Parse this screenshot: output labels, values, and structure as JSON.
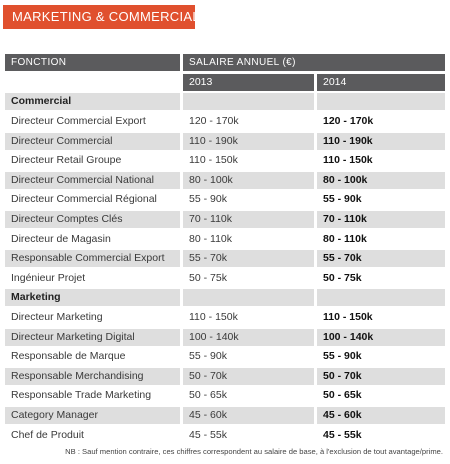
{
  "banner": {
    "title": "MARKETING & COMMERCIAL"
  },
  "header": {
    "fonction": "FONCTION",
    "salaire": "SALAIRE ANNUEL (€)",
    "year1": "2013",
    "year2": "2014"
  },
  "sections": [
    {
      "title": "Commercial",
      "rows": [
        {
          "fonction": "Directeur Commercial Export",
          "y2013": "120 - 170k",
          "y2014": "120 - 170k"
        },
        {
          "fonction": "Directeur Commercial",
          "y2013": "110 - 190k",
          "y2014": "110 - 190k"
        },
        {
          "fonction": "Directeur Retail Groupe",
          "y2013": "110 - 150k",
          "y2014": "110 - 150k"
        },
        {
          "fonction": "Directeur Commercial National",
          "y2013": "80 - 100k",
          "y2014": "80 - 100k"
        },
        {
          "fonction": "Directeur Commercial Régional",
          "y2013": "55 - 90k",
          "y2014": "55 - 90k"
        },
        {
          "fonction": "Directeur Comptes Clés",
          "y2013": "70 - 110k",
          "y2014": "70 - 110k"
        },
        {
          "fonction": "Directeur de Magasin",
          "y2013": "80 - 110k",
          "y2014": "80 - 110k"
        },
        {
          "fonction": "Responsable Commercial Export",
          "y2013": "55 - 70k",
          "y2014": "55 - 70k"
        },
        {
          "fonction": "Ingénieur Projet",
          "y2013": "50 - 75k",
          "y2014": "50 - 75k"
        }
      ]
    },
    {
      "title": "Marketing",
      "rows": [
        {
          "fonction": "Directeur Marketing",
          "y2013": "110 - 150k",
          "y2014": "110 - 150k"
        },
        {
          "fonction": "Directeur Marketing Digital",
          "y2013": "100 - 140k",
          "y2014": "100 - 140k"
        },
        {
          "fonction": "Responsable de Marque",
          "y2013": "55 - 90k",
          "y2014": "55 - 90k"
        },
        {
          "fonction": "Responsable Merchandising",
          "y2013": "50 - 70k",
          "y2014": "50 - 70k"
        },
        {
          "fonction": "Responsable Trade Marketing",
          "y2013": "50 - 65k",
          "y2014": "50 - 65k"
        },
        {
          "fonction": "Category Manager",
          "y2013": "45 - 60k",
          "y2014": "45 - 60k"
        },
        {
          "fonction": "Chef de Produit",
          "y2013": "45 - 55k",
          "y2014": "45 - 55k"
        }
      ]
    }
  ],
  "note": "NB : Sauf mention contraire, ces chiffres correspondent au salaire de base, à l'exclusion de tout avantage/prime."
}
